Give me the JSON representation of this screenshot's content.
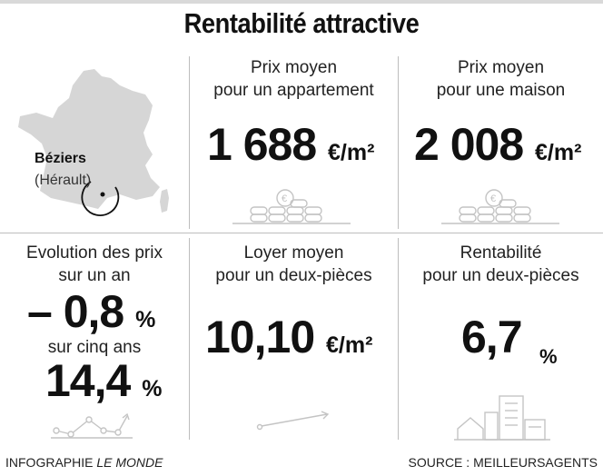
{
  "title": "Rentabilité attractive",
  "location": {
    "city": "Béziers",
    "department": "(Hérault)"
  },
  "cells": {
    "apartment": {
      "label_line1": "Prix moyen",
      "label_line2": "pour un appartement",
      "value": "1 688",
      "unit": "€/m²",
      "icon": "coins-euro-icon"
    },
    "house": {
      "label_line1": "Prix moyen",
      "label_line2": "pour une maison",
      "value": "2 008",
      "unit": "€/m²",
      "icon": "coins-euro-icon"
    },
    "evolution": {
      "label_line1": "Evolution des prix",
      "label_line2": "sur un an",
      "value_year": "– 0,8",
      "unit_year": "%",
      "label_five_years": "sur cinq ans",
      "value_five_years": "14,4",
      "unit_five_years": "%",
      "icon": "line-chart-icon"
    },
    "rent": {
      "label_line1": "Loyer moyen",
      "label_line2": "pour un deux-pièces",
      "value": "10,10",
      "unit": "€/m²",
      "icon": "trend-arrow-icon"
    },
    "yield": {
      "label_line1": "Rentabilité",
      "label_line2": "pour un deux-pièces",
      "value": "6,7",
      "unit": "%",
      "icon": "buildings-icon"
    }
  },
  "footer": {
    "credit_prefix": "INFOGRAPHIE ",
    "credit_brand": "LE MONDE",
    "source": "SOURCE : MEILLEURSAGENTS"
  },
  "colors": {
    "map_fill": "#d6d6d6",
    "icon_stroke": "#c4c4c4",
    "divider": "#bdbdbd"
  }
}
